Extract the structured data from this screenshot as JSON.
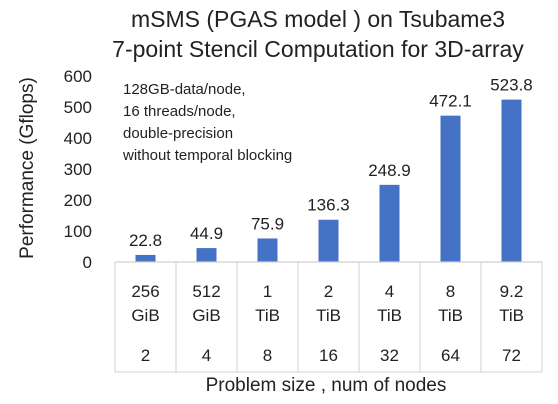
{
  "chart_data": {
    "type": "bar",
    "title_lines": [
      "mSMS (PGAS model ) on Tsubame3",
      "7-point Stencil Computation for 3D-array"
    ],
    "ylabel": "Performance (Gflops)",
    "xlabel": "Problem size , num of nodes",
    "ylim": [
      0,
      600
    ],
    "yticks": [
      0,
      100,
      200,
      300,
      400,
      500,
      600
    ],
    "categories": [
      {
        "size_value": "256",
        "size_unit": "GiB",
        "nodes": "2"
      },
      {
        "size_value": "512",
        "size_unit": "GiB",
        "nodes": "4"
      },
      {
        "size_value": "1",
        "size_unit": "TiB",
        "nodes": "8"
      },
      {
        "size_value": "2",
        "size_unit": "TiB",
        "nodes": "16"
      },
      {
        "size_value": "4",
        "size_unit": "TiB",
        "nodes": "32"
      },
      {
        "size_value": "8",
        "size_unit": "TiB",
        "nodes": "64"
      },
      {
        "size_value": "9.2",
        "size_unit": "TiB",
        "nodes": "72"
      }
    ],
    "values": [
      22.8,
      44.9,
      75.9,
      136.3,
      248.9,
      472.1,
      523.8
    ],
    "data_labels": [
      "22.8",
      "44.9",
      "75.9",
      "136.3",
      "248.9",
      "472.1",
      "523.8"
    ],
    "annotation_lines": [
      "128GB-data/node,",
      "16 threads/node,",
      "double-precision",
      "without temporal blocking"
    ],
    "bar_color": "#4472C4",
    "grid": false
  }
}
